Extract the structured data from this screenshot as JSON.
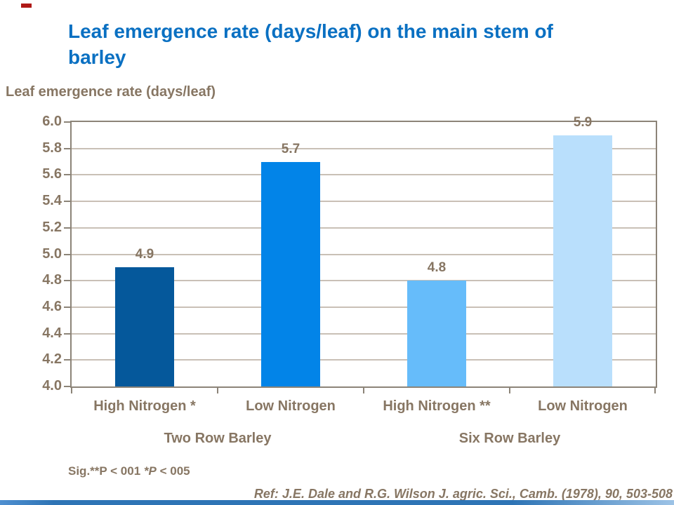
{
  "header": {
    "title_line1": "Leaf emergence rate (days/leaf) on the main stem of",
    "title_line2": "barley"
  },
  "chart_data": {
    "type": "bar",
    "title": "Leaf emergence rate (days/leaf) on the main stem of barley",
    "ylabel": "Leaf emergence rate (days/leaf)",
    "xlabel": "",
    "categories": [
      "High Nitrogen *",
      "Low Nitrogen",
      "High Nitrogen **",
      "Low Nitrogen"
    ],
    "groups": [
      "Two Row Barley",
      "Six Row Barley"
    ],
    "values": [
      4.9,
      5.7,
      4.8,
      5.9
    ],
    "data_labels": [
      "4.9",
      "5.7",
      "4.8",
      "5.9"
    ],
    "bar_colors": [
      "#05589B",
      "#0284E8",
      "#66BCFA",
      "#B9DFFC"
    ],
    "ylim": [
      4.0,
      6.0
    ],
    "ytick_step": 0.2,
    "yticks": [
      "6.0",
      "5.8",
      "5.6",
      "5.4",
      "5.2",
      "5.0",
      "4.8",
      "4.6",
      "4.4",
      "4.2",
      "4.0"
    ],
    "grid": true,
    "legend_position": "none"
  },
  "footnotes": {
    "sig_part1": "Sig.**P < 001 ",
    "sig_part2": "*P",
    "sig_part3": " < 005",
    "reference": "Ref: J.E. Dale and R.G. Wilson J. agric. Sci., Camb. (1978), 90, 503-508"
  },
  "colors": {
    "title": "#0A70C2",
    "text": "#877663",
    "gridline": "#C9C0B6",
    "axis": "#8C8478",
    "accent_bar": "#2E74B5",
    "accent_bar_light": "#9DC3E6",
    "red_mark": "#AF1917"
  }
}
